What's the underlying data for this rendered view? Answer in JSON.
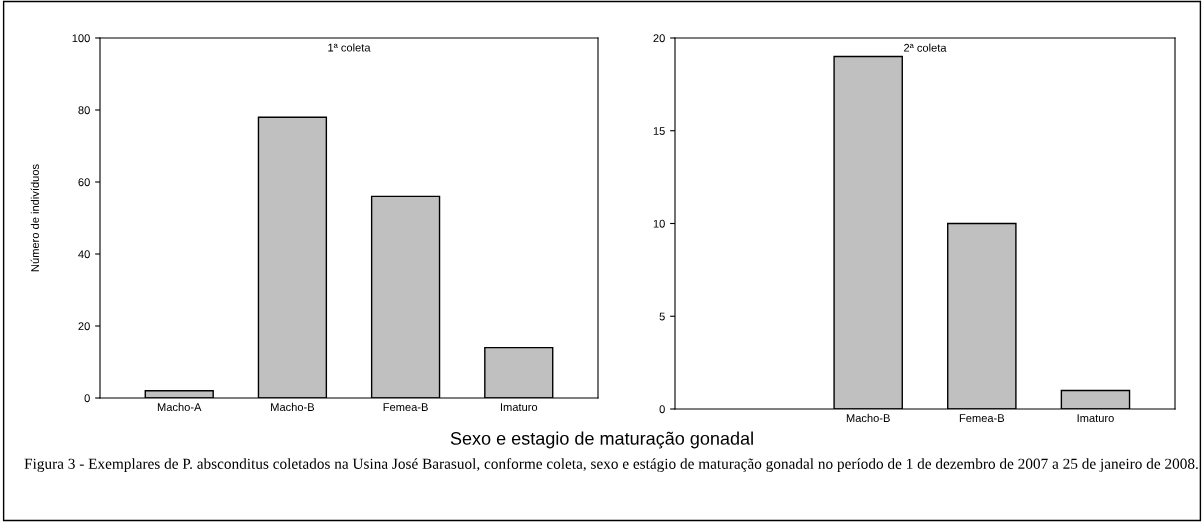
{
  "chart_data": [
    {
      "type": "bar",
      "title": "1ª coleta",
      "ylabel": "Número de indivíduos",
      "xlabel": "Sexo e estagio de maturação gonadal",
      "categories": [
        "Macho-A",
        "Macho-B",
        "Femea-B",
        "Imaturo"
      ],
      "values": [
        2,
        78,
        56,
        14
      ],
      "color": "#c0c0c0",
      "ylim": [
        0,
        100
      ],
      "yticks": [
        0,
        20,
        40,
        60,
        80,
        100
      ],
      "grid": false,
      "legend": false
    },
    {
      "type": "bar",
      "title": "2ª coleta",
      "categories": [
        null,
        "Macho-B",
        "Femea-B",
        "Imaturo"
      ],
      "values": [
        null,
        19,
        10,
        1
      ],
      "color": "#c0c0c0",
      "ylim": [
        0,
        20
      ],
      "yticks": [
        0,
        5,
        10,
        15,
        20
      ],
      "grid": false,
      "legend": false,
      "annotations": [
        "Figura 3 - Exemplares de P. absconditus coletados na Usina José Barasuol, conforme coleta, sexo e estágio de maturação gonadal no período de 1 de dezembro de 2007 a 25 de janeiro de 2008."
      ]
    }
  ]
}
